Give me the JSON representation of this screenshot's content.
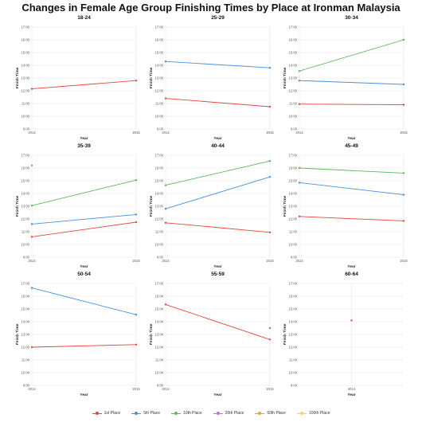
{
  "chart_data": {
    "type": "line",
    "title": "Changes in Female Age Group Finishing Times by Place at Ironman Malaysia",
    "xlabel": "Year",
    "ylabel": "Finish Time",
    "x": [
      "2014",
      "2015"
    ],
    "y_ticks": [
      "9:00",
      "10:00",
      "11:00",
      "12:00",
      "13:00",
      "14:00",
      "15:00",
      "16:00",
      "17:00"
    ],
    "ylim": [
      9,
      17
    ],
    "grid": true,
    "legend_position": "bottom",
    "legend": [
      {
        "name": "1st Place",
        "color": "#e8453c"
      },
      {
        "name": "5th Place",
        "color": "#4a90d9"
      },
      {
        "name": "10th Place",
        "color": "#5cb85c"
      },
      {
        "name": "20th Place",
        "color": "#b27ad6"
      },
      {
        "name": "50th Place",
        "color": "#f0a030"
      },
      {
        "name": "100th Place",
        "color": "#f5d840"
      }
    ],
    "panels": [
      {
        "title": "18-24",
        "series": [
          {
            "name": "1st Place",
            "values": [
              12.15,
              12.8
            ]
          }
        ]
      },
      {
        "title": "25-29",
        "series": [
          {
            "name": "5th Place",
            "values": [
              14.3,
              13.8
            ]
          },
          {
            "name": "1st Place",
            "values": [
              11.4,
              10.75
            ]
          }
        ]
      },
      {
        "title": "30-34",
        "series": [
          {
            "name": "10th Place",
            "values": [
              13.55,
              16.0
            ]
          },
          {
            "name": "5th Place",
            "values": [
              12.8,
              12.5
            ]
          },
          {
            "name": "1st Place",
            "values": [
              10.95,
              10.9
            ]
          }
        ]
      },
      {
        "title": "35-39",
        "series": [
          {
            "name": "20th Place",
            "values": [
              16.2,
              null
            ]
          },
          {
            "name": "10th Place",
            "values": [
              13.05,
              15.05
            ]
          },
          {
            "name": "5th Place",
            "values": [
              11.6,
              12.35
            ]
          },
          {
            "name": "1st Place",
            "values": [
              10.6,
              11.75
            ]
          }
        ]
      },
      {
        "title": "40-44",
        "series": [
          {
            "name": "10th Place",
            "values": [
              14.65,
              16.55
            ]
          },
          {
            "name": "5th Place",
            "values": [
              12.8,
              15.3
            ]
          },
          {
            "name": "1st Place",
            "values": [
              11.7,
              10.95
            ]
          }
        ]
      },
      {
        "title": "45-49",
        "series": [
          {
            "name": "10th Place",
            "values": [
              16.0,
              15.6
            ]
          },
          {
            "name": "5th Place",
            "values": [
              14.85,
              13.9
            ]
          },
          {
            "name": "1st Place",
            "values": [
              12.2,
              11.85
            ]
          }
        ]
      },
      {
        "title": "50-54",
        "series": [
          {
            "name": "5th Place",
            "values": [
              16.65,
              14.55
            ]
          },
          {
            "name": "1st Place",
            "values": [
              12.0,
              12.2
            ]
          }
        ]
      },
      {
        "title": "55-59",
        "series": [
          {
            "name": "1st Place",
            "values": [
              15.35,
              12.6
            ]
          },
          {
            "name": "5th Place",
            "values": [
              null,
              13.5
            ]
          }
        ]
      },
      {
        "title": "60-64",
        "x": [
          "2014"
        ],
        "series": [
          {
            "name": "1st Place",
            "values": [
              14.1
            ]
          }
        ]
      }
    ]
  }
}
